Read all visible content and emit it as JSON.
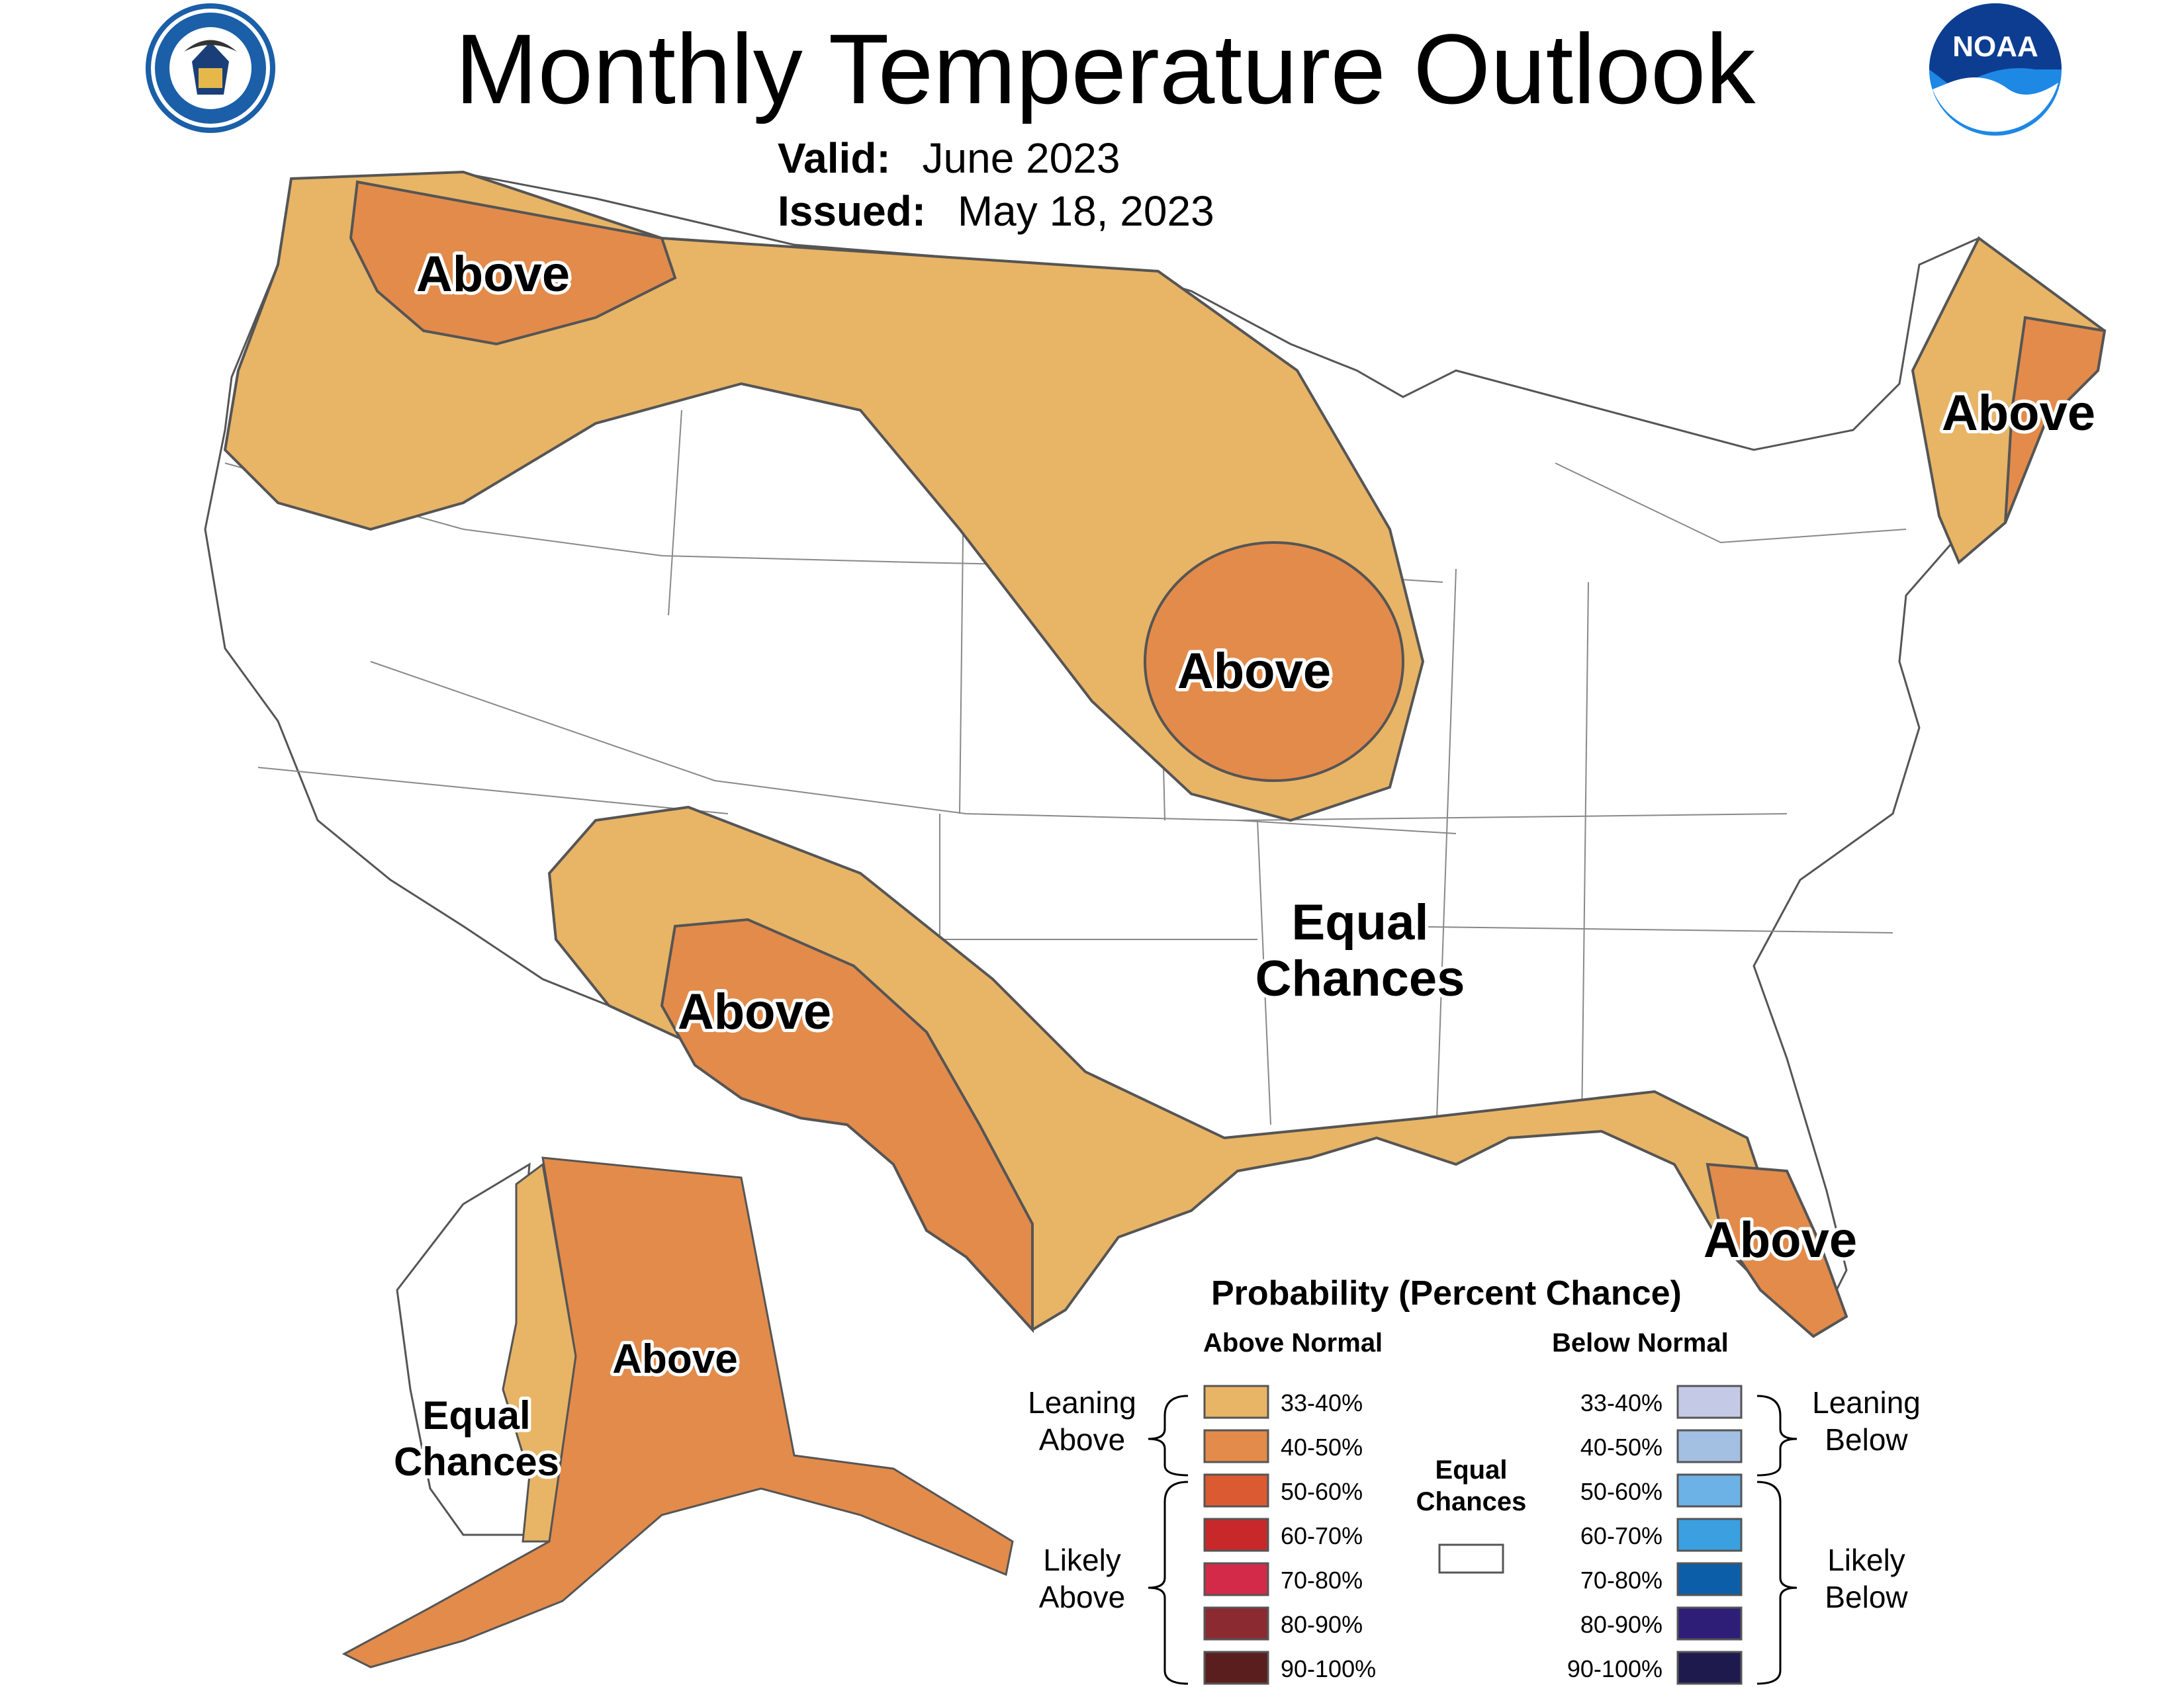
{
  "header": {
    "title": "Monthly Temperature Outlook",
    "valid_label": "Valid:",
    "valid_value": "June 2023",
    "issued_label": "Issued:",
    "issued_value": "May 18, 2023"
  },
  "logos": {
    "commerce_seal": "department-of-commerce-seal",
    "noaa_logo_text": "NOAA"
  },
  "map_labels": {
    "northwest": "Above",
    "midwest": "Above",
    "northeast": "Above",
    "southwest": "Above",
    "florida": "Above",
    "alaska_east": "Above",
    "central_line1": "Equal",
    "central_line2": "Chances",
    "alaska_west_line1": "Equal",
    "alaska_west_line2": "Chances"
  },
  "colors": {
    "above_33_40": "#E8B466",
    "above_40_50": "#E38B4A",
    "above_50_60": "#DC5A32",
    "above_60_70": "#C8282A",
    "above_70_80": "#D22A48",
    "above_80_90": "#8C2A32",
    "above_90_100": "#5A1E1E",
    "below_33_40": "#C4CAE6",
    "below_40_50": "#A3BFE2",
    "below_50_60": "#6DB2E6",
    "below_60_70": "#3AA0E0",
    "below_70_80": "#0C5EA8",
    "below_80_90": "#2E1E78",
    "below_90_100": "#1E1A4E",
    "equal": "#ffffff",
    "border": "#555555"
  },
  "legend": {
    "title": "Probability (Percent Chance)",
    "above_heading": "Above Normal",
    "below_heading": "Below Normal",
    "leaning_above_l1": "Leaning",
    "leaning_above_l2": "Above",
    "likely_above_l1": "Likely",
    "likely_above_l2": "Above",
    "leaning_below_l1": "Leaning",
    "leaning_below_l2": "Below",
    "likely_below_l1": "Likely",
    "likely_below_l2": "Below",
    "equal_l1": "Equal",
    "equal_l2": "Chances",
    "above_ranges": [
      "33-40%",
      "40-50%",
      "50-60%",
      "60-70%",
      "70-80%",
      "80-90%",
      "90-100%"
    ],
    "below_ranges": [
      "33-40%",
      "40-50%",
      "50-60%",
      "60-70%",
      "70-80%",
      "80-90%",
      "90-100%"
    ]
  }
}
